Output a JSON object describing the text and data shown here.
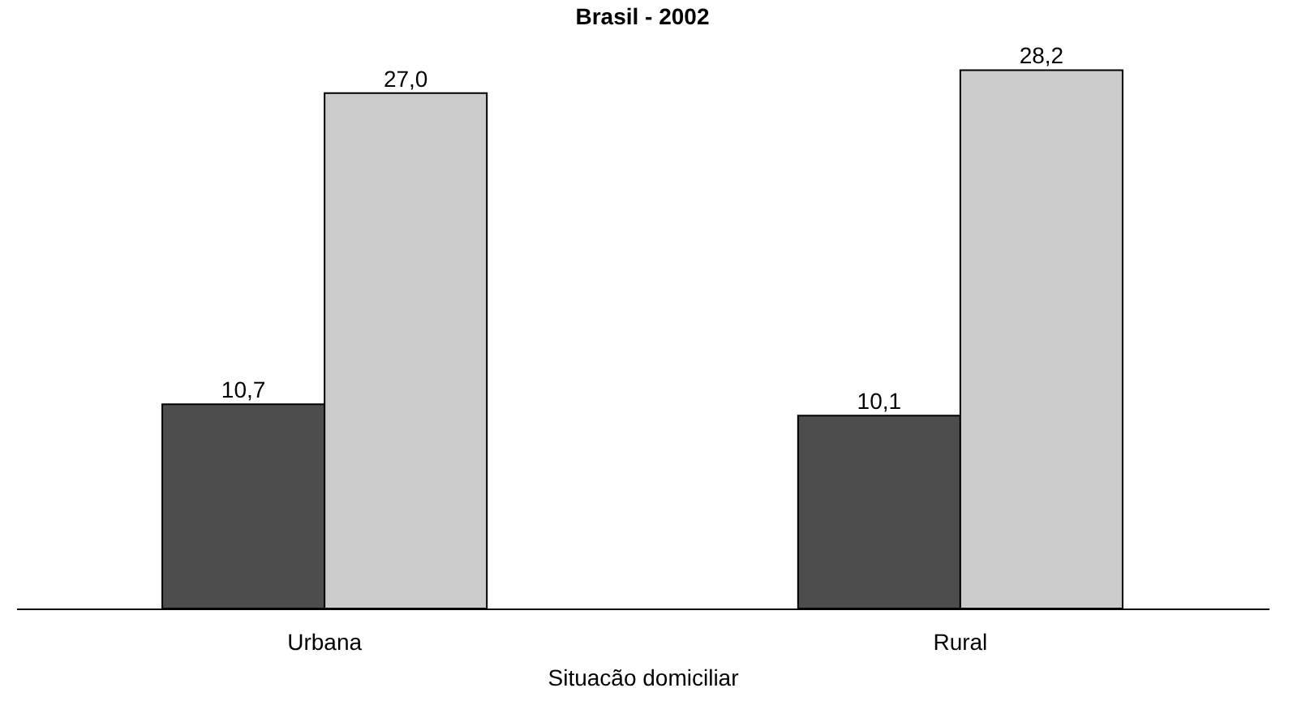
{
  "chart_data": {
    "type": "bar",
    "title": "Brasil - 2002",
    "xlabel": "Situacão domiciliar",
    "categories": [
      "Urbana",
      "Rural"
    ],
    "series": [
      {
        "color": "#4d4d4d",
        "values": [
          10.7,
          10.1
        ],
        "value_labels": [
          "10,7",
          "10,1"
        ]
      },
      {
        "color": "#cccccc",
        "values": [
          27.0,
          28.2
        ],
        "value_labels": [
          "27,0",
          "28,2"
        ]
      }
    ],
    "grid": false,
    "legend": false
  }
}
